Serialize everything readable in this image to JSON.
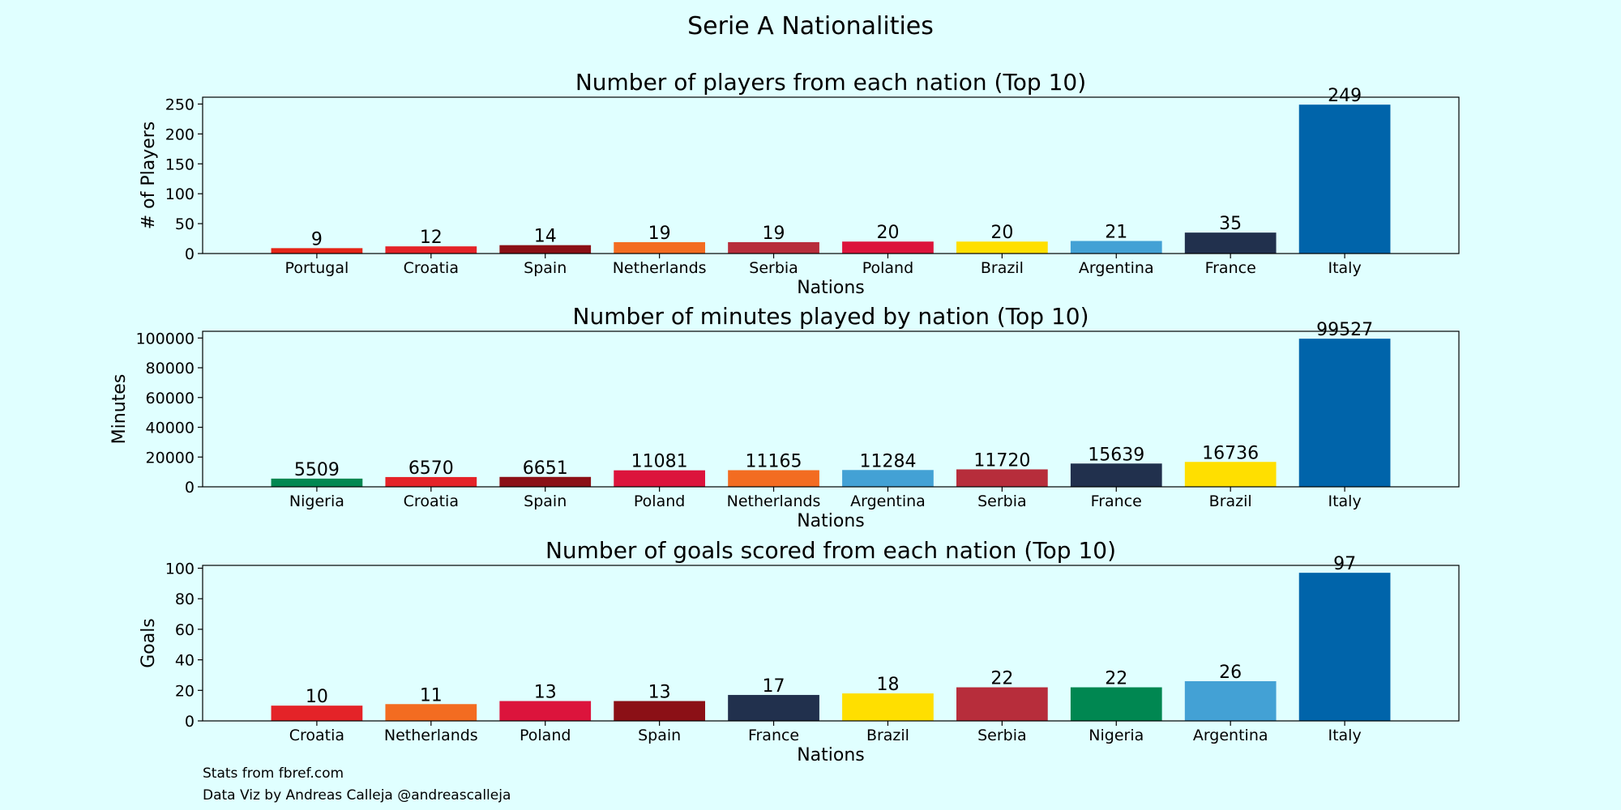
{
  "figure": {
    "suptitle": "Serie A Nationalities",
    "background": "#E0FFFF",
    "footer": {
      "line1": "Stats from fbref.com",
      "line2": "Data Viz by Andreas Calleja @andreascalleja"
    }
  },
  "chart_data": [
    {
      "type": "bar",
      "title": "Number of players from each nation (Top 10)",
      "xlabel": "Nations",
      "ylabel": "# of Players",
      "categories": [
        "Portugal",
        "Croatia",
        "Spain",
        "Netherlands",
        "Serbia",
        "Poland",
        "Brazil",
        "Argentina",
        "France",
        "Italy"
      ],
      "values": [
        9,
        12,
        14,
        19,
        19,
        20,
        20,
        21,
        35,
        249
      ],
      "colors": [
        "#E42518",
        "#E42328",
        "#8B1016",
        "#F36C21",
        "#B72D3B",
        "#DC143C",
        "#FFDF00",
        "#43A1D5",
        "#21304D",
        "#0064AA"
      ],
      "ylim": [
        0,
        261.45
      ],
      "yticks": [
        0,
        50,
        100,
        150,
        200,
        250
      ],
      "value_labels": true
    },
    {
      "type": "bar",
      "title": "Number of minutes played by nation (Top 10)",
      "xlabel": "Nations",
      "ylabel": "Minutes",
      "categories": [
        "Nigeria",
        "Croatia",
        "Spain",
        "Poland",
        "Netherlands",
        "Argentina",
        "Serbia",
        "France",
        "Brazil",
        "Italy"
      ],
      "values": [
        5509,
        6570,
        6651,
        11081,
        11165,
        11284,
        11720,
        15639,
        16736,
        99527
      ],
      "colors": [
        "#008751",
        "#E42328",
        "#8B1016",
        "#DC143C",
        "#F36C21",
        "#43A1D5",
        "#B72D3B",
        "#21304D",
        "#FFDF00",
        "#0064AA"
      ],
      "ylim": [
        0,
        104503
      ],
      "yticks": [
        0,
        20000,
        40000,
        60000,
        80000,
        100000
      ],
      "value_labels": true
    },
    {
      "type": "bar",
      "title": "Number of goals scored from each nation (Top 10)",
      "xlabel": "Nations",
      "ylabel": "Goals",
      "categories": [
        "Croatia",
        "Netherlands",
        "Poland",
        "Spain",
        "France",
        "Brazil",
        "Serbia",
        "Nigeria",
        "Argentina",
        "Italy"
      ],
      "values": [
        10,
        11,
        13,
        13,
        17,
        18,
        22,
        22,
        26,
        97
      ],
      "colors": [
        "#E42328",
        "#F36C21",
        "#DC143C",
        "#8B1016",
        "#21304D",
        "#FFDF00",
        "#B72D3B",
        "#008751",
        "#43A1D5",
        "#0064AA"
      ],
      "ylim": [
        0,
        101.85
      ],
      "yticks": [
        0,
        20,
        40,
        60,
        80,
        100
      ],
      "value_labels": true
    }
  ]
}
